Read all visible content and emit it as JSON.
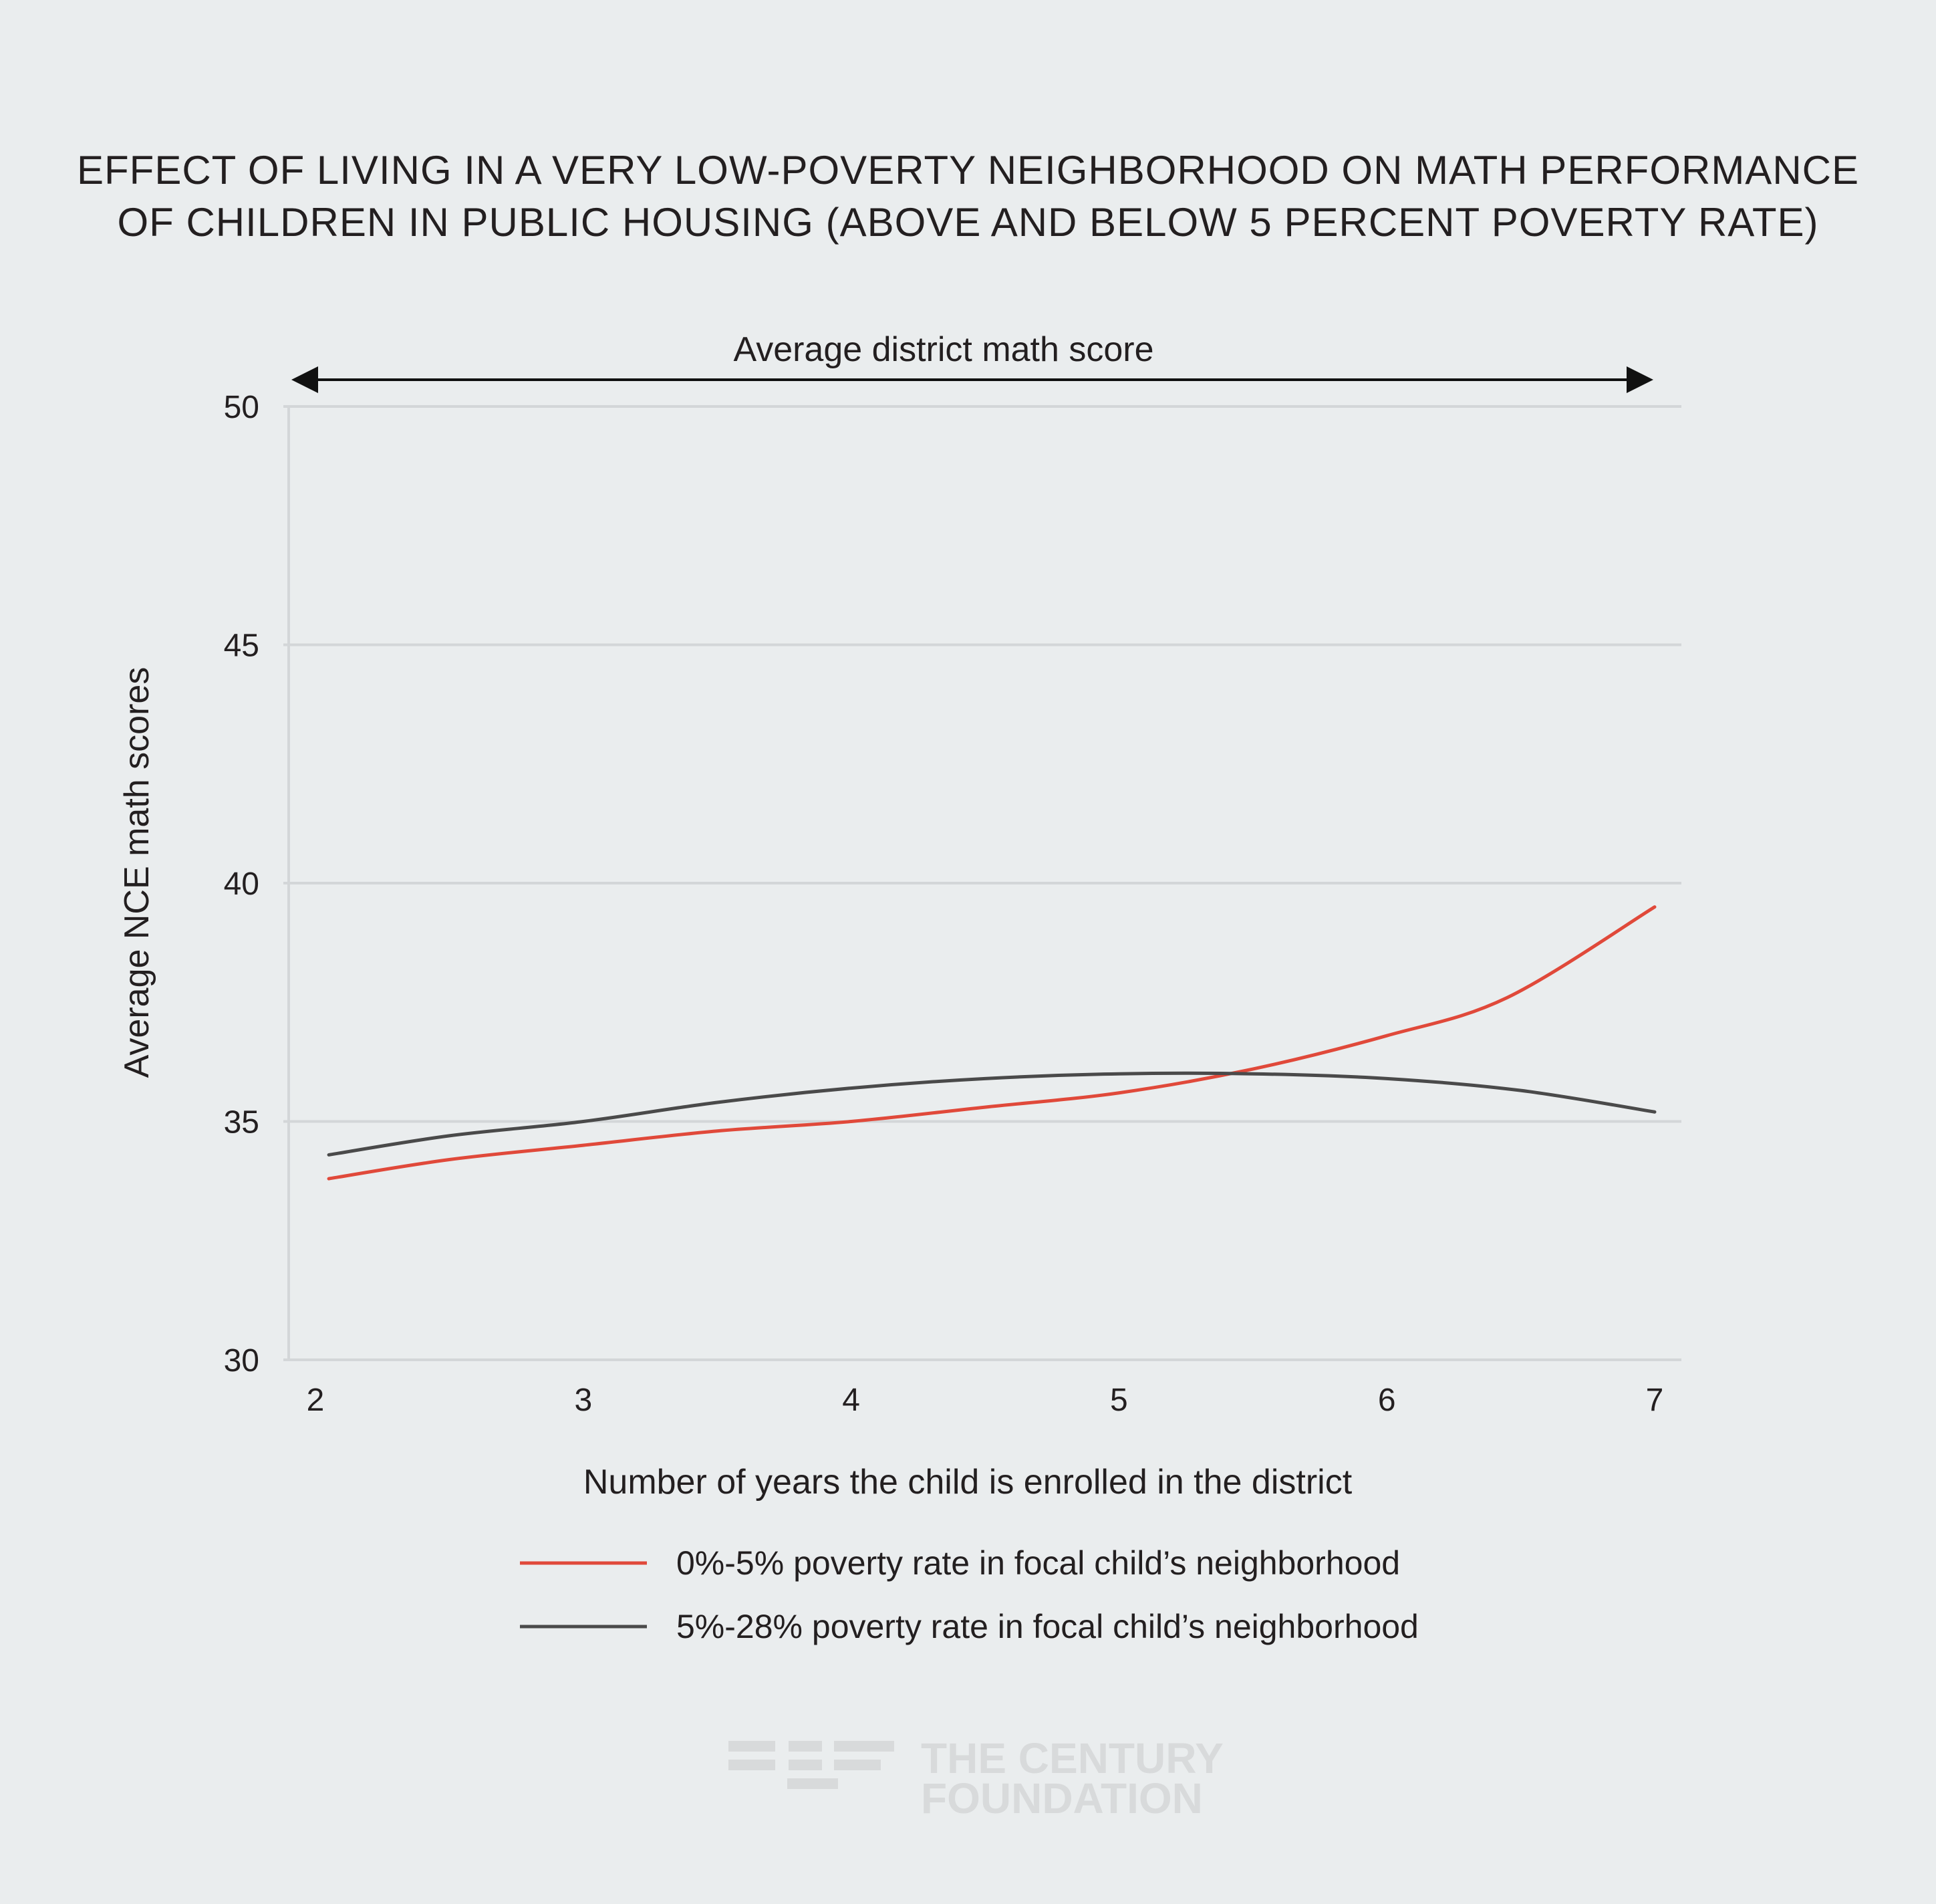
{
  "title": {
    "line1": "EFFECT OF LIVING IN A VERY LOW-POVERTY NEIGHBORHOOD ON MATH PERFORMANCE",
    "line2": "OF CHILDREN IN PUBLIC HOUSING (ABOVE AND BELOW 5 PERCENT POVERTY RATE)"
  },
  "annotation": {
    "label": "Average district math score",
    "value": 50
  },
  "logo": {
    "line1": "THE CENTURY",
    "line2": "FOUNDATION"
  },
  "chart_data": {
    "type": "line",
    "title": "EFFECT OF LIVING IN A VERY LOW-POVERTY NEIGHBORHOOD ON MATH PERFORMANCE OF CHILDREN IN PUBLIC HOUSING (ABOVE AND BELOW 5 PERCENT POVERTY RATE)",
    "xlabel": "Number of years the child is enrolled in the district",
    "ylabel": "Average NCE math scores",
    "xlim": [
      2,
      7
    ],
    "ylim": [
      30,
      50
    ],
    "xticks": [
      2,
      3,
      4,
      5,
      6,
      7
    ],
    "yticks": [
      30,
      35,
      40,
      45,
      50
    ],
    "grid": true,
    "legend_position": "bottom",
    "series": [
      {
        "name": "0%-5% poverty rate in focal child’s neighborhood",
        "color": "#e0493a",
        "x": [
          2.05,
          2.5,
          3.0,
          3.5,
          4.0,
          4.5,
          5.0,
          5.5,
          6.0,
          6.45,
          7.0
        ],
        "y": [
          33.8,
          34.2,
          34.5,
          34.8,
          35.0,
          35.3,
          35.6,
          36.1,
          36.8,
          37.6,
          39.5
        ]
      },
      {
        "name": "5%-28% poverty rate in focal child’s neighborhood",
        "color": "#4a4a4a",
        "x": [
          2.05,
          2.5,
          3.0,
          3.5,
          4.0,
          4.5,
          5.0,
          5.5,
          6.0,
          6.5,
          7.0
        ],
        "y": [
          34.3,
          34.7,
          35.0,
          35.4,
          35.7,
          35.9,
          36.0,
          36.0,
          35.9,
          35.65,
          35.2
        ]
      }
    ]
  }
}
